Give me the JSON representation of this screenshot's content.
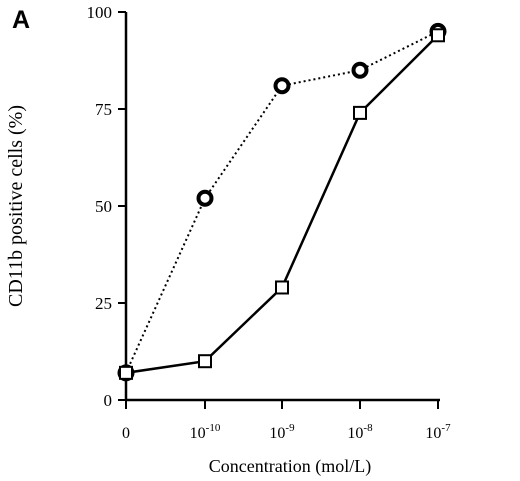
{
  "chart_data": {
    "type": "line",
    "panel_label": "A",
    "xlabel": "Concentration (mol/L)",
    "ylabel": "CD11b positive cells (%)",
    "x_tick_labels": [
      {
        "base": "0",
        "exp": ""
      },
      {
        "base": "10",
        "exp": "-10"
      },
      {
        "base": "10",
        "exp": "-9"
      },
      {
        "base": "10",
        "exp": "-8"
      },
      {
        "base": "10",
        "exp": "-7"
      }
    ],
    "x": [
      "0",
      "1e-10",
      "1e-9",
      "1e-8",
      "1e-7"
    ],
    "y_ticks": [
      0,
      25,
      50,
      75,
      100
    ],
    "ylim": [
      0,
      100
    ],
    "grid": false,
    "series": [
      {
        "marker": "circle",
        "line_style": "dotted",
        "values": [
          7,
          52,
          81,
          85,
          95
        ]
      },
      {
        "marker": "square",
        "line_style": "solid",
        "values": [
          7,
          10,
          29,
          74,
          94
        ]
      }
    ],
    "colors": {
      "ink": "#000000",
      "background": "#ffffff"
    }
  }
}
